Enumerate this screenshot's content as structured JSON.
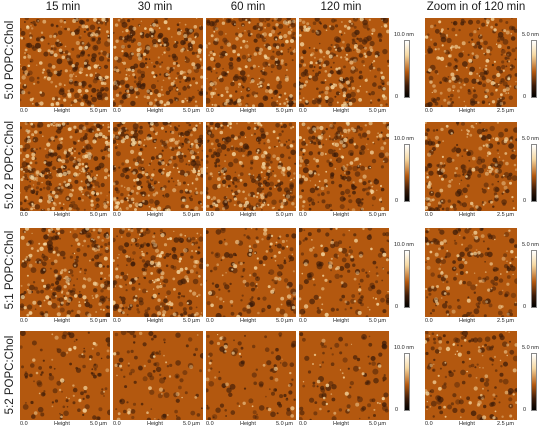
{
  "column_titles": [
    "15 min",
    "30 min",
    "60 min",
    "120 min",
    "Zoom in of 120 min"
  ],
  "rows": [
    {
      "label": "5:0 POPC:Chol",
      "colorbar_main": "10.0 nm",
      "colorbar_zoom": "5.0 nm",
      "zoom_scale": "2.5 µm"
    },
    {
      "label": "5:0.2 POPC:Chol",
      "colorbar_main": "10.0 nm",
      "colorbar_zoom": "5.0 nm",
      "zoom_scale": "2.5 µm"
    },
    {
      "label": "5:1 POPC:Chol",
      "colorbar_main": "10.0 nm",
      "colorbar_zoom": "5.0 nm",
      "zoom_scale": "2.5 µm"
    },
    {
      "label": "5:2 POPC:Chol",
      "colorbar_main": "10.0 nm",
      "colorbar_zoom": "5.0 nm",
      "zoom_scale": "2.5 µm"
    }
  ],
  "axis": {
    "left": "0.0",
    "middle": "Height",
    "right_main": "5.0 µm"
  },
  "colorbar_zero": "0",
  "colors": {
    "afm_dark": "#3a1a08",
    "afm_mid": "#b3580f",
    "afm_light": "#f6d9a3",
    "colorbar_top": "#ffffff",
    "colorbar_bottom": "#000000"
  }
}
